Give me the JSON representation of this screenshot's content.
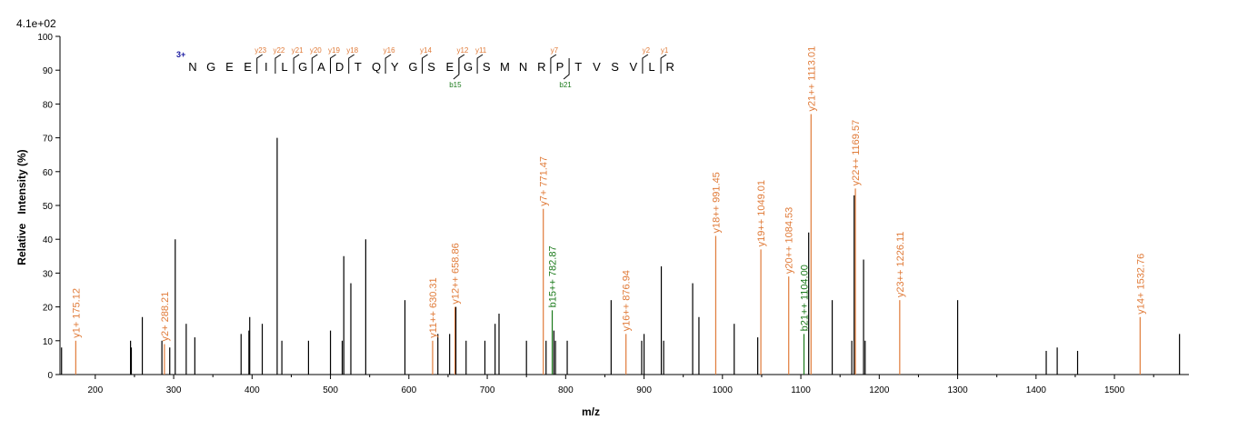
{
  "chart_data": {
    "type": "bar",
    "scale_label": "4.1e+02",
    "xlabel": "m/z",
    "ylabel": "Relative   Intensity (%)",
    "xlim": [
      155,
      1595
    ],
    "ylim": [
      0,
      100
    ],
    "x_ticks": [
      200,
      300,
      400,
      500,
      600,
      700,
      800,
      900,
      1000,
      1100,
      1200,
      1300,
      1400,
      1500
    ],
    "y_ticks": [
      0,
      10,
      20,
      30,
      40,
      50,
      60,
      70,
      80,
      90,
      100
    ],
    "colors": {
      "unlabeled": "#000000",
      "y_ion": "#e07b39",
      "b_ion": "#1a7a1a",
      "sequence": "#000000",
      "charge": "#1a1aa0"
    },
    "peaks": [
      {
        "mz": 157,
        "intensity": 8,
        "label": "",
        "ion": "none"
      },
      {
        "mz": 175.12,
        "intensity": 10,
        "label": "y1+ 175.12",
        "ion": "y"
      },
      {
        "mz": 245,
        "intensity": 10,
        "label": "",
        "ion": "none"
      },
      {
        "mz": 246,
        "intensity": 8,
        "label": "",
        "ion": "none"
      },
      {
        "mz": 260,
        "intensity": 17,
        "label": "",
        "ion": "none"
      },
      {
        "mz": 285,
        "intensity": 10,
        "label": "",
        "ion": "none"
      },
      {
        "mz": 288.21,
        "intensity": 9,
        "label": "y2+ 288.21",
        "ion": "y"
      },
      {
        "mz": 295,
        "intensity": 8,
        "label": "",
        "ion": "none"
      },
      {
        "mz": 302,
        "intensity": 40,
        "label": "",
        "ion": "none"
      },
      {
        "mz": 316,
        "intensity": 15,
        "label": "",
        "ion": "none"
      },
      {
        "mz": 327,
        "intensity": 11,
        "label": "",
        "ion": "none"
      },
      {
        "mz": 386,
        "intensity": 12,
        "label": "",
        "ion": "none"
      },
      {
        "mz": 396,
        "intensity": 13,
        "label": "",
        "ion": "none"
      },
      {
        "mz": 397,
        "intensity": 17,
        "label": "",
        "ion": "none"
      },
      {
        "mz": 413,
        "intensity": 15,
        "label": "",
        "ion": "none"
      },
      {
        "mz": 432,
        "intensity": 70,
        "label": "",
        "ion": "none"
      },
      {
        "mz": 438,
        "intensity": 10,
        "label": "",
        "ion": "none"
      },
      {
        "mz": 472,
        "intensity": 10,
        "label": "",
        "ion": "none"
      },
      {
        "mz": 500,
        "intensity": 13,
        "label": "",
        "ion": "none"
      },
      {
        "mz": 515,
        "intensity": 10,
        "label": "",
        "ion": "none"
      },
      {
        "mz": 517,
        "intensity": 35,
        "label": "",
        "ion": "none"
      },
      {
        "mz": 526,
        "intensity": 27,
        "label": "",
        "ion": "none"
      },
      {
        "mz": 545,
        "intensity": 40,
        "label": "",
        "ion": "none"
      },
      {
        "mz": 595,
        "intensity": 22,
        "label": "",
        "ion": "none"
      },
      {
        "mz": 630.31,
        "intensity": 10,
        "label": "y11++ 630.31",
        "ion": "y"
      },
      {
        "mz": 637,
        "intensity": 12,
        "label": "",
        "ion": "none"
      },
      {
        "mz": 652,
        "intensity": 12,
        "label": "",
        "ion": "none"
      },
      {
        "mz": 658.86,
        "intensity": 20,
        "label": "y12++ 658.86",
        "ion": "y"
      },
      {
        "mz": 660,
        "intensity": 20,
        "label": "",
        "ion": "none"
      },
      {
        "mz": 673,
        "intensity": 10,
        "label": "",
        "ion": "none"
      },
      {
        "mz": 697,
        "intensity": 10,
        "label": "",
        "ion": "none"
      },
      {
        "mz": 710,
        "intensity": 15,
        "label": "",
        "ion": "none"
      },
      {
        "mz": 715,
        "intensity": 18,
        "label": "",
        "ion": "none"
      },
      {
        "mz": 750,
        "intensity": 10,
        "label": "",
        "ion": "none"
      },
      {
        "mz": 771.47,
        "intensity": 49,
        "label": "y7+ 771.47",
        "ion": "y"
      },
      {
        "mz": 775,
        "intensity": 10,
        "label": "",
        "ion": "none"
      },
      {
        "mz": 782.87,
        "intensity": 19,
        "label": "b15++ 782.87",
        "ion": "b"
      },
      {
        "mz": 785,
        "intensity": 13,
        "label": "",
        "ion": "none"
      },
      {
        "mz": 787,
        "intensity": 10,
        "label": "",
        "ion": "none"
      },
      {
        "mz": 802,
        "intensity": 10,
        "label": "",
        "ion": "none"
      },
      {
        "mz": 858,
        "intensity": 22,
        "label": "",
        "ion": "none"
      },
      {
        "mz": 876.94,
        "intensity": 12,
        "label": "y16++ 876.94",
        "ion": "y"
      },
      {
        "mz": 897,
        "intensity": 10,
        "label": "",
        "ion": "none"
      },
      {
        "mz": 900,
        "intensity": 12,
        "label": "",
        "ion": "none"
      },
      {
        "mz": 922,
        "intensity": 32,
        "label": "",
        "ion": "none"
      },
      {
        "mz": 925,
        "intensity": 10,
        "label": "",
        "ion": "none"
      },
      {
        "mz": 962,
        "intensity": 27,
        "label": "",
        "ion": "none"
      },
      {
        "mz": 970,
        "intensity": 17,
        "label": "",
        "ion": "none"
      },
      {
        "mz": 991.45,
        "intensity": 41,
        "label": "y18++ 991.45",
        "ion": "y"
      },
      {
        "mz": 1015,
        "intensity": 15,
        "label": "",
        "ion": "none"
      },
      {
        "mz": 1045,
        "intensity": 11,
        "label": "",
        "ion": "none"
      },
      {
        "mz": 1049.01,
        "intensity": 37,
        "label": "y19++ 1049.01",
        "ion": "y"
      },
      {
        "mz": 1084.53,
        "intensity": 29,
        "label": "y20++ 1084.53",
        "ion": "y"
      },
      {
        "mz": 1104.0,
        "intensity": 12,
        "label": "b21++ 1104.00",
        "ion": "b"
      },
      {
        "mz": 1110,
        "intensity": 42,
        "label": "",
        "ion": "none"
      },
      {
        "mz": 1113.01,
        "intensity": 77,
        "label": "y21++ 1113.01",
        "ion": "y"
      },
      {
        "mz": 1140,
        "intensity": 22,
        "label": "",
        "ion": "none"
      },
      {
        "mz": 1165,
        "intensity": 10,
        "label": "",
        "ion": "none"
      },
      {
        "mz": 1168,
        "intensity": 53,
        "label": "",
        "ion": "none"
      },
      {
        "mz": 1169.57,
        "intensity": 55,
        "label": "y22++ 1169.57",
        "ion": "y"
      },
      {
        "mz": 1180,
        "intensity": 34,
        "label": "",
        "ion": "none"
      },
      {
        "mz": 1182,
        "intensity": 10,
        "label": "",
        "ion": "none"
      },
      {
        "mz": 1226.11,
        "intensity": 22,
        "label": "y23++ 1226.11",
        "ion": "y"
      },
      {
        "mz": 1300,
        "intensity": 22,
        "label": "",
        "ion": "none"
      },
      {
        "mz": 1413,
        "intensity": 7,
        "label": "",
        "ion": "none"
      },
      {
        "mz": 1427,
        "intensity": 8,
        "label": "",
        "ion": "none"
      },
      {
        "mz": 1453,
        "intensity": 7,
        "label": "",
        "ion": "none"
      },
      {
        "mz": 1532.76,
        "intensity": 17,
        "label": "y14+ 1532.76",
        "ion": "y"
      },
      {
        "mz": 1583,
        "intensity": 12,
        "label": "",
        "ion": "none"
      }
    ],
    "sequence": {
      "charge": "3+",
      "residues": [
        "N",
        "G",
        "E",
        "E",
        "I",
        "L",
        "G",
        "A",
        "D",
        "T",
        "Q",
        "Y",
        "G",
        "S",
        "E",
        "G",
        "S",
        "M",
        "N",
        "R",
        "P",
        "T",
        "V",
        "S",
        "V",
        "L",
        "R"
      ],
      "y_ions": [
        {
          "label": "y23",
          "index": 4
        },
        {
          "label": "y22",
          "index": 5
        },
        {
          "label": "y21",
          "index": 6
        },
        {
          "label": "y20",
          "index": 7
        },
        {
          "label": "y19",
          "index": 8
        },
        {
          "label": "y18",
          "index": 9
        },
        {
          "label": "y16",
          "index": 11
        },
        {
          "label": "y14",
          "index": 13
        },
        {
          "label": "y12",
          "index": 15
        },
        {
          "label": "y11",
          "index": 16
        },
        {
          "label": "y7",
          "index": 20
        },
        {
          "label": "y2",
          "index": 25
        },
        {
          "label": "y1",
          "index": 26
        }
      ],
      "b_ions": [
        {
          "label": "b15",
          "index": 15
        },
        {
          "label": "b21",
          "index": 21
        }
      ]
    }
  }
}
